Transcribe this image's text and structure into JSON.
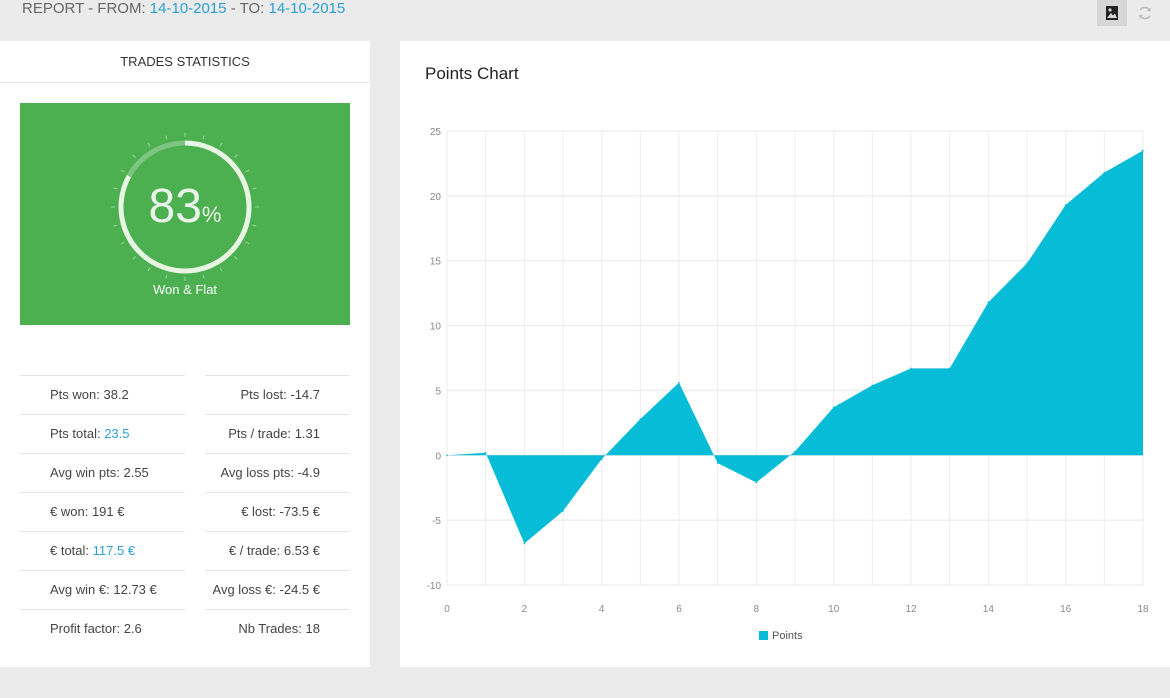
{
  "header": {
    "prefix": "REPORT - FROM:",
    "from_date": "14-10-2015",
    "separator": "- TO:",
    "to_date": "14-10-2015"
  },
  "stats": {
    "title": "TRADES STATISTICS",
    "gauge": {
      "value": "83",
      "unit": "%",
      "label": "Won & Flat",
      "fraction": 0.83
    },
    "rows": [
      {
        "left_label": "Pts won:",
        "left_value": "38.2",
        "right_label": "Pts lost:",
        "right_value": "-14.7"
      },
      {
        "left_label": "Pts total:",
        "left_value": "23.5",
        "right_label": "Pts / trade:",
        "right_value": "1.31"
      },
      {
        "left_label": "Avg win pts:",
        "left_value": "2.55",
        "right_label": "Avg loss pts:",
        "right_value": "-4.9"
      },
      {
        "left_label": "€ won:",
        "left_value": "191 €",
        "right_label": "€ lost:",
        "right_value": "-73.5 €"
      },
      {
        "left_label": "€ total:",
        "left_value": "117.5 €",
        "right_label": "€ / trade:",
        "right_value": "6.53 €"
      },
      {
        "left_label": "Avg win €:",
        "left_value": "12.73 €",
        "right_label": "Avg loss €:",
        "right_value": "-24.5 €"
      },
      {
        "left_label": "Profit factor:",
        "left_value": "2.6",
        "right_label": "Nb Trades:",
        "right_value": "18"
      }
    ]
  },
  "chart_data": {
    "type": "area",
    "title": "Points Chart",
    "x": [
      0,
      1,
      2,
      3,
      4,
      5,
      6,
      7,
      8,
      9,
      10,
      11,
      12,
      13,
      14,
      15,
      16,
      17,
      18
    ],
    "series": [
      {
        "name": "Points",
        "values": [
          0,
          0.2,
          -6.8,
          -4.3,
          -0.3,
          2.8,
          5.6,
          -0.6,
          -2.1,
          0.3,
          3.7,
          5.4,
          6.7,
          6.7,
          11.8,
          14.8,
          19.3,
          21.8,
          23.5
        ]
      }
    ],
    "xlim": [
      0,
      18
    ],
    "ylim": [
      -10,
      25
    ],
    "xticks": [
      0,
      2,
      4,
      6,
      8,
      10,
      12,
      14,
      16,
      18
    ],
    "yticks": [
      -10,
      -5,
      0,
      5,
      10,
      15,
      20,
      25
    ],
    "grid": true,
    "legend": "bottom-center",
    "color": "#06bcd6"
  },
  "colors": {
    "accent": "#2a9fd6",
    "gauge_bg": "#4caf50",
    "area": "#06bcd6"
  },
  "icons": {
    "image": "image-icon",
    "refresh": "refresh-icon"
  }
}
